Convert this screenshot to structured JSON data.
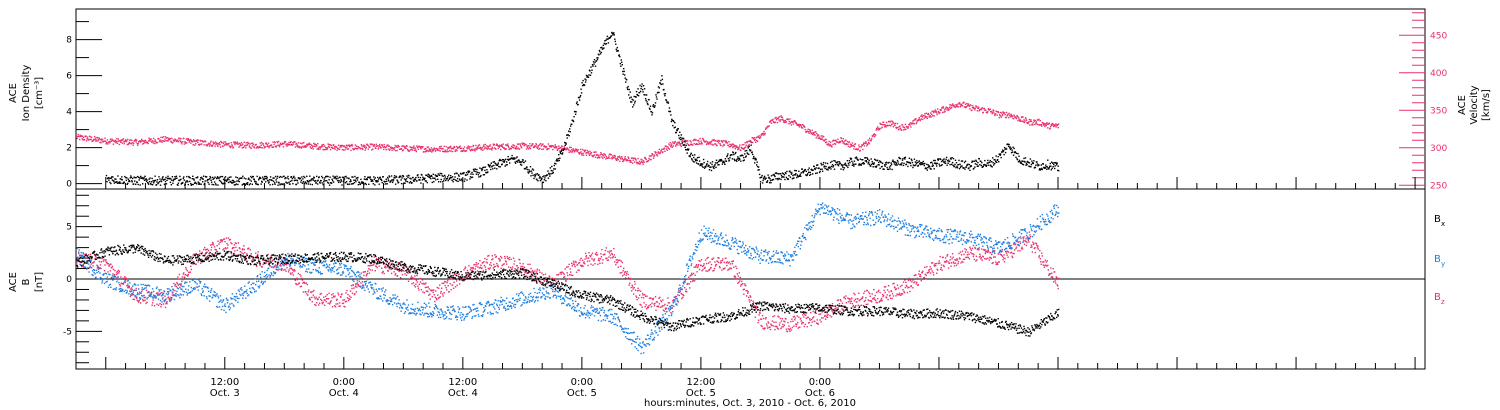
{
  "colors": {
    "black": "#000000",
    "pink": "#e8336b",
    "blue": "#1e7fe0"
  },
  "chart_data": [
    {
      "type": "scatter",
      "ylabel_left": [
        "ACE",
        "Ion Density",
        "[cm⁻³]"
      ],
      "ylabel_right": [
        "ACE",
        "Velocity",
        "[km/s]"
      ],
      "left_ticks": [
        "0",
        "2",
        "4",
        "6",
        "8"
      ],
      "right_ticks": [
        "250",
        "300",
        "350",
        "400",
        "450"
      ],
      "ylim_left": [
        -0.3,
        9.7
      ],
      "ylim_right": [
        245,
        485
      ],
      "series": [
        {
          "color": "#000000",
          "axis": "left",
          "x": [
            0,
            3,
            6,
            9,
            12,
            15,
            18,
            21,
            24,
            27,
            30,
            33,
            36,
            37,
            38,
            39,
            40,
            41,
            42,
            43,
            44,
            45,
            46,
            47,
            48,
            49,
            50,
            51,
            52,
            53,
            54,
            55,
            56,
            57,
            58,
            59,
            60,
            61,
            62,
            63,
            64,
            65,
            66,
            67,
            68,
            69,
            70,
            71,
            72,
            73,
            74,
            75,
            76,
            77,
            78,
            79,
            80,
            81,
            82,
            83,
            84,
            85,
            86,
            87,
            88,
            89,
            90,
            91,
            92,
            93,
            94,
            95,
            96
          ],
          "y": [
            0.3,
            0.2,
            0.2,
            0.2,
            0.2,
            0.2,
            0.2,
            0.2,
            0.2,
            0.2,
            0.25,
            0.35,
            0.4,
            0.6,
            0.7,
            1.0,
            1.2,
            1.4,
            1.2,
            0.6,
            0.3,
            0.8,
            1.8,
            3.5,
            5.5,
            6.5,
            7.5,
            8.5,
            6.5,
            4.5,
            5.5,
            4.0,
            5.8,
            3.5,
            2.5,
            1.5,
            1.2,
            1.0,
            1.2,
            1.6,
            1.4,
            2.0,
            0.3,
            0.3,
            0.5,
            0.5,
            0.6,
            0.7,
            0.9,
            1.1,
            1.0,
            1.2,
            1.3,
            1.2,
            1.1,
            1.0,
            1.3,
            1.2,
            1.1,
            1.0,
            1.2,
            1.3,
            1.1,
            1.0,
            1.2,
            1.1,
            1.5,
            2.2,
            1.4,
            1.2,
            1.0,
            1.1,
            0.9
          ]
        },
        {
          "color": "#e8336b",
          "axis": "right",
          "x": [
            -3,
            0,
            3,
            6,
            9,
            12,
            15,
            18,
            21,
            24,
            27,
            30,
            33,
            36,
            39,
            42,
            45,
            48,
            51,
            54,
            57,
            60,
            63,
            64,
            65,
            66,
            67,
            68,
            69,
            70,
            71,
            72,
            73,
            74,
            75,
            76,
            77,
            78,
            79,
            80,
            81,
            82,
            83,
            84,
            85,
            86,
            87,
            88,
            89,
            90,
            91,
            92,
            93,
            94,
            95,
            96
          ],
          "y": [
            315,
            310,
            308,
            312,
            308,
            305,
            304,
            306,
            303,
            301,
            302,
            300,
            299,
            300,
            302,
            303,
            302,
            295,
            288,
            282,
            305,
            310,
            305,
            300,
            310,
            315,
            335,
            340,
            335,
            330,
            322,
            315,
            305,
            312,
            305,
            300,
            310,
            330,
            334,
            328,
            330,
            340,
            345,
            350,
            355,
            360,
            355,
            352,
            350,
            345,
            345,
            340,
            335,
            335,
            330,
            330
          ]
        }
      ]
    },
    {
      "type": "scatter",
      "ylabel_left": [
        "ACE",
        "B",
        "[nT]"
      ],
      "left_ticks": [
        "-5",
        "0",
        "5"
      ],
      "ylim": [
        -8.6,
        8.6
      ],
      "legend": [
        "B",
        "B",
        "B"
      ],
      "legend_sub": [
        "x",
        "y",
        "z"
      ],
      "series": [
        {
          "color": "#000000",
          "x": [
            -3,
            0,
            3,
            6,
            9,
            12,
            15,
            18,
            21,
            24,
            27,
            30,
            33,
            36,
            39,
            42,
            45,
            48,
            51,
            54,
            57,
            60,
            63,
            66,
            69,
            72,
            75,
            78,
            81,
            84,
            87,
            90,
            93,
            96
          ],
          "y": [
            1.6,
            2.7,
            3.0,
            1.8,
            2.0,
            2.3,
            1.8,
            2.0,
            2.1,
            2.2,
            2.0,
            1.2,
            0.8,
            0.3,
            0.5,
            0.6,
            -0.4,
            -1.5,
            -2.0,
            -3.5,
            -4.5,
            -3.8,
            -3.5,
            -2.5,
            -2.8,
            -2.7,
            -3.0,
            -3.0,
            -3.3,
            -3.2,
            -3.5,
            -4.2,
            -5.0,
            -3.2
          ]
        },
        {
          "color": "#1e7fe0",
          "x": [
            -3,
            0,
            3,
            6,
            9,
            12,
            15,
            18,
            21,
            24,
            27,
            30,
            33,
            36,
            39,
            42,
            45,
            48,
            51,
            54,
            57,
            60,
            63,
            66,
            69,
            72,
            75,
            78,
            81,
            84,
            87,
            90,
            93,
            96
          ],
          "y": [
            2.4,
            0.0,
            -1.0,
            -1.5,
            -0.5,
            -2.5,
            -0.5,
            2.0,
            1.2,
            1.0,
            -1.0,
            -2.5,
            -3.0,
            -3.2,
            -2.6,
            -1.8,
            -1.0,
            -3.0,
            -3.5,
            -6.5,
            -3.0,
            4.5,
            3.5,
            2.2,
            2.0,
            7.0,
            5.5,
            6.0,
            4.8,
            4.2,
            4.0,
            3.0,
            4.5,
            6.8
          ]
        },
        {
          "color": "#e8336b",
          "x": [
            -3,
            0,
            3,
            6,
            9,
            12,
            15,
            18,
            21,
            24,
            27,
            30,
            33,
            36,
            39,
            42,
            45,
            48,
            51,
            54,
            57,
            60,
            63,
            66,
            69,
            72,
            75,
            78,
            81,
            84,
            87,
            90,
            93,
            96
          ],
          "y": [
            2.0,
            1.5,
            -1.5,
            -2.0,
            2.0,
            3.5,
            2.0,
            1.5,
            -1.8,
            -2.0,
            1.5,
            0.8,
            -1.5,
            0.5,
            1.8,
            1.2,
            -0.5,
            1.8,
            2.5,
            -2.0,
            -2.5,
            1.5,
            1.5,
            -4.0,
            -4.3,
            -3.5,
            -2.0,
            -1.5,
            -0.5,
            1.5,
            2.5,
            2.0,
            3.8,
            -0.4
          ]
        }
      ]
    }
  ],
  "x_axis": {
    "xlim": [
      -3,
      133
    ],
    "ticks": [
      {
        "x": 12,
        "line1": "12:00",
        "line2": "Oct. 3"
      },
      {
        "x": 24,
        "line1": "0:00",
        "line2": "Oct. 4"
      },
      {
        "x": 36,
        "line1": "12:00",
        "line2": "Oct. 4"
      },
      {
        "x": 48,
        "line1": "0:00",
        "line2": "Oct. 5"
      },
      {
        "x": 60,
        "line1": "12:00",
        "line2": "Oct. 5"
      },
      {
        "x": 72,
        "line1": "0:00",
        "line2": "Oct. 6"
      }
    ],
    "label": "hours:minutes, Oct.  3, 2010 - Oct.  6, 2010"
  }
}
